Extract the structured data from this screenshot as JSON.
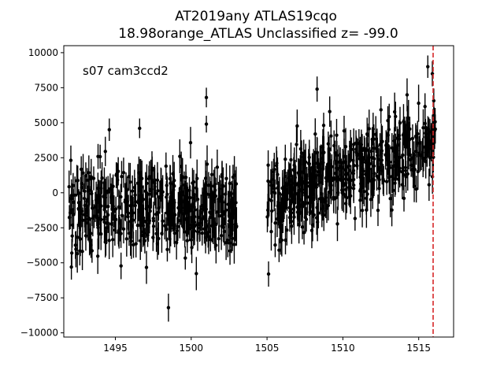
{
  "chart_data": {
    "type": "scatter",
    "title_line1": "AT2019any  ATLAS19cqo",
    "title_line2": "18.98orange_ATLAS Unclassified z= -99.0",
    "annotation": "s07 cam3ccd2",
    "xlabel": "",
    "ylabel": "",
    "xlim": [
      1491.6,
      1517.3
    ],
    "ylim": [
      -10300,
      10500
    ],
    "x_ticks": [
      1495,
      1500,
      1505,
      1510,
      1515
    ],
    "x_tick_labels": [
      "1495",
      "1500",
      "1505",
      "1510",
      "1515"
    ],
    "y_ticks": [
      -10000,
      -7500,
      -5000,
      -2500,
      0,
      2500,
      5000,
      7500,
      10000
    ],
    "y_tick_labels": [
      "−10000",
      "−7500",
      "−5000",
      "−2500",
      "0",
      "2500",
      "5000",
      "7500",
      "10000"
    ],
    "grid": false,
    "marker_color": "#000000",
    "vline": {
      "x": 1515.95,
      "color": "#d62728",
      "style": "dashed"
    },
    "segments": [
      {
        "x_start": 1491.95,
        "x_end": 1503.0,
        "n_points": 480,
        "mean_start": -1300,
        "mean_end": -1200,
        "scatter": 1500,
        "err": 1100
      },
      {
        "x_start": 1505.0,
        "x_end": 1516.1,
        "n_points": 520,
        "mean_start": -500,
        "mean_end": 3900,
        "scatter": 1500,
        "err": 1100
      }
    ],
    "highlights": [
      {
        "x": 1501.0,
        "y": 6800,
        "err": 700
      },
      {
        "x": 1498.5,
        "y": -8200,
        "err": 1000
      },
      {
        "x": 1496.6,
        "y": 4600,
        "err": 700
      },
      {
        "x": 1501.0,
        "y": 4900,
        "err": 600
      },
      {
        "x": 1494.6,
        "y": 4500,
        "err": 800
      },
      {
        "x": 1492.1,
        "y": -5300,
        "err": 900
      },
      {
        "x": 1515.6,
        "y": 9000,
        "err": 800
      },
      {
        "x": 1515.9,
        "y": 8500,
        "err": 900
      },
      {
        "x": 1505.1,
        "y": -5800,
        "err": 900
      },
      {
        "x": 1508.3,
        "y": 7400,
        "err": 900
      }
    ]
  }
}
